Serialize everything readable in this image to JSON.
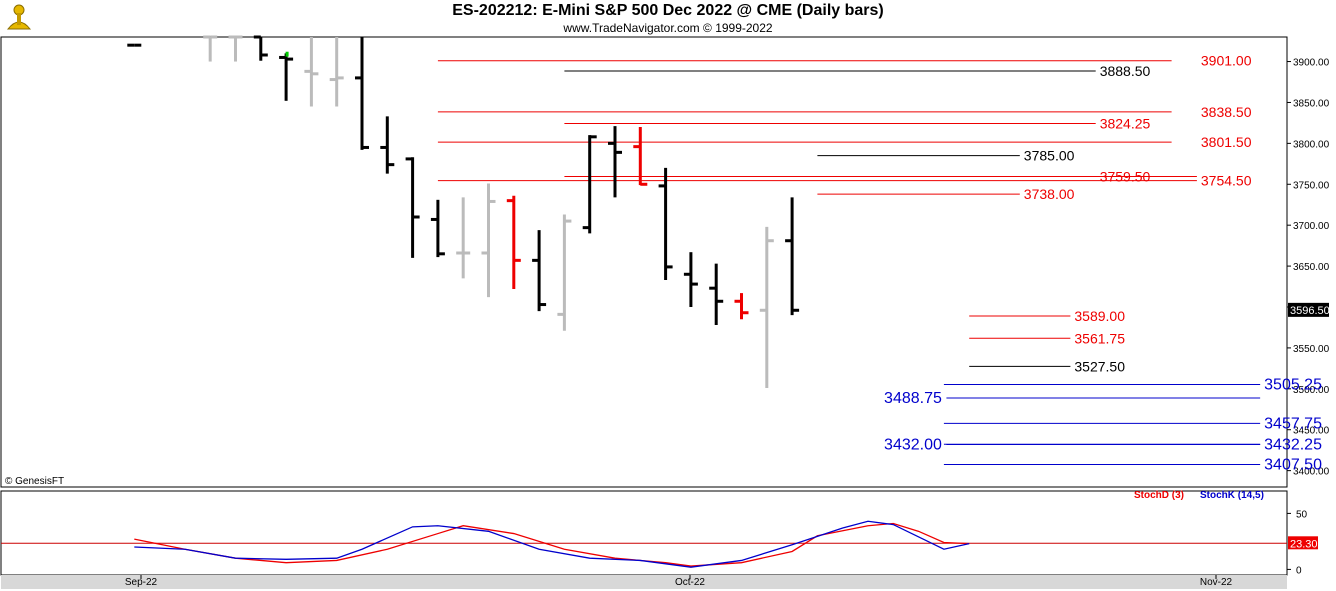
{
  "header": {
    "title": "ES-202212:  E-Mini S&P 500 Dec 2022 @ CME  (Daily bars)",
    "subtitle": "www.TradeNavigator.com © 1999-2022"
  },
  "copyright": "© GenesisFT",
  "colors": {
    "black": "#000000",
    "gray": "#bbbbbb",
    "red": "#ee0000",
    "blue": "#0000cc",
    "green": "#00cc00"
  },
  "chart_data": {
    "type": "ohlc",
    "price_axis": {
      "ylim": [
        3380,
        3930
      ],
      "ticks": [
        "3900.00",
        "3850.00",
        "3800.00",
        "3750.00",
        "3700.00",
        "3650.00",
        "3600.00",
        "3550.00",
        "3500.00",
        "3450.00",
        "3400.00"
      ],
      "last_price": "3596.50"
    },
    "x_labels": [
      "Sep-22",
      "Oct-22",
      "Nov-22"
    ],
    "bars": [
      {
        "i": 1,
        "o": 3920,
        "h": 3920,
        "l": 3920,
        "c": 3920,
        "color": "black"
      },
      {
        "i": 4,
        "o": 3930,
        "h": 3930,
        "l": 3900,
        "c": 3930,
        "color": "gray"
      },
      {
        "i": 5,
        "o": 3930,
        "h": 3930,
        "l": 3900,
        "c": 3930,
        "color": "gray"
      },
      {
        "i": 6,
        "o": 3930,
        "h": 3930,
        "l": 3901,
        "c": 3908,
        "color": "black"
      },
      {
        "i": 7,
        "o": 3905,
        "h": 3910,
        "l": 3852,
        "c": 3903,
        "color": "black"
      },
      {
        "i": 8,
        "o": 3888,
        "h": 3930,
        "l": 3845,
        "c": 3885,
        "color": "gray"
      },
      {
        "i": 9,
        "o": 3878,
        "h": 3930,
        "l": 3845,
        "c": 3880,
        "color": "gray"
      },
      {
        "i": 10,
        "o": 3880,
        "h": 3930,
        "l": 3792,
        "c": 3795,
        "color": "black"
      },
      {
        "i": 11,
        "o": 3795,
        "h": 3833,
        "l": 3763,
        "c": 3774,
        "color": "black"
      },
      {
        "i": 12,
        "o": 3781,
        "h": 3783,
        "l": 3660,
        "c": 3710,
        "color": "black"
      },
      {
        "i": 13,
        "o": 3707,
        "h": 3731,
        "l": 3661,
        "c": 3665,
        "color": "black"
      },
      {
        "i": 14,
        "o": 3666,
        "h": 3734,
        "l": 3635,
        "c": 3666,
        "color": "gray"
      },
      {
        "i": 15,
        "o": 3666,
        "h": 3751,
        "l": 3612,
        "c": 3729,
        "color": "gray"
      },
      {
        "i": 16,
        "o": 3730,
        "h": 3736,
        "l": 3622,
        "c": 3657,
        "color": "red"
      },
      {
        "i": 17,
        "o": 3657,
        "h": 3694,
        "l": 3595,
        "c": 3603,
        "color": "black"
      },
      {
        "i": 18,
        "o": 3591,
        "h": 3713,
        "l": 3571,
        "c": 3705,
        "color": "gray"
      },
      {
        "i": 19,
        "o": 3697,
        "h": 3810,
        "l": 3690,
        "c": 3808,
        "color": "black"
      },
      {
        "i": 20,
        "o": 3800,
        "h": 3821,
        "l": 3734,
        "c": 3789,
        "color": "black"
      },
      {
        "i": 21,
        "o": 3796,
        "h": 3820,
        "l": 3749,
        "c": 3750,
        "color": "red"
      },
      {
        "i": 22,
        "o": 3748,
        "h": 3770,
        "l": 3633,
        "c": 3649,
        "color": "black"
      },
      {
        "i": 23,
        "o": 3640,
        "h": 3667,
        "l": 3600,
        "c": 3628,
        "color": "black"
      },
      {
        "i": 24,
        "o": 3623,
        "h": 3653,
        "l": 3578,
        "c": 3607,
        "color": "black"
      },
      {
        "i": 25,
        "o": 3607,
        "h": 3617,
        "l": 3585,
        "c": 3593,
        "color": "red"
      },
      {
        "i": 26,
        "o": 3596,
        "h": 3698,
        "l": 3501,
        "c": 3681,
        "color": "gray"
      },
      {
        "i": 27,
        "o": 3681,
        "h": 3734,
        "l": 3590,
        "c": 3596,
        "color": "black"
      }
    ],
    "levels": [
      {
        "label": "3901.00",
        "price": 3901.0,
        "color": "red",
        "x1": 13,
        "x2": 42,
        "label_x": 43,
        "label_side": "right"
      },
      {
        "label": "3888.50",
        "price": 3888.5,
        "color": "black",
        "x1": 18,
        "x2": 39,
        "label_x": 39,
        "label_side": "right"
      },
      {
        "label": "3838.50",
        "price": 3838.5,
        "color": "red",
        "x1": 13,
        "x2": 42,
        "label_x": 43,
        "label_side": "right"
      },
      {
        "label": "3824.25",
        "price": 3824.25,
        "color": "red",
        "x1": 18,
        "x2": 39,
        "label_x": 39,
        "label_side": "right"
      },
      {
        "label": "3801.50",
        "price": 3801.5,
        "color": "red",
        "x1": 13,
        "x2": 42,
        "label_x": 43,
        "label_side": "right"
      },
      {
        "label": "3785.00",
        "price": 3785.0,
        "color": "black",
        "x1": 28,
        "x2": 36,
        "label_x": 36,
        "label_side": "right"
      },
      {
        "label": "3759.50",
        "price": 3759.5,
        "color": "red",
        "x1": 18,
        "x2": 43,
        "label_x": 39,
        "label_side": "right"
      },
      {
        "label": "3754.50",
        "price": 3754.5,
        "color": "red",
        "x1": 13,
        "x2": 43,
        "label_x": 43,
        "label_side": "right"
      },
      {
        "label": "3738.00",
        "price": 3738.0,
        "color": "red",
        "x1": 28,
        "x2": 36,
        "label_x": 36,
        "label_side": "right"
      },
      {
        "label": "3589.00",
        "price": 3589.0,
        "color": "red",
        "x1": 34,
        "x2": 38,
        "label_x": 38,
        "label_side": "right"
      },
      {
        "label": "3561.75",
        "price": 3561.75,
        "color": "red",
        "x1": 34,
        "x2": 38,
        "label_x": 38,
        "label_side": "right"
      },
      {
        "label": "3527.50",
        "price": 3527.5,
        "color": "black",
        "x1": 34,
        "x2": 38,
        "label_x": 38,
        "label_side": "right"
      },
      {
        "label": "3505.25",
        "price": 3505.25,
        "color": "blue",
        "x1": 33,
        "x2": 45.5,
        "label_x": 45.5,
        "label_side": "right"
      },
      {
        "label": "3488.75",
        "price": 3488.75,
        "color": "blue",
        "x1": 33.1,
        "x2": 45.5,
        "label_x": 33,
        "label_side": "left"
      },
      {
        "label": "3457.75",
        "price": 3457.75,
        "color": "blue",
        "x1": 33,
        "x2": 45.5,
        "label_x": 45.5,
        "label_side": "right"
      },
      {
        "label": "3432.25",
        "price": 3432.25,
        "color": "blue",
        "x1": 33,
        "x2": 45.5,
        "label_x": 45.5,
        "label_side": "right"
      },
      {
        "label": "3432.00",
        "price": 3432.0,
        "color": "blue",
        "x1": 33.1,
        "x2": 45.5,
        "label_x": 33,
        "label_side": "left"
      },
      {
        "label": "3407.50",
        "price": 3407.5,
        "color": "blue",
        "x1": 33,
        "x2": 45.5,
        "label_x": 45.5,
        "label_side": "right"
      }
    ],
    "indicator": {
      "legend": [
        "StochD (3)",
        "StochK (14,5)"
      ],
      "ylim": [
        -5,
        70
      ],
      "ticks": [
        "50",
        "0"
      ],
      "last_value": "23.30",
      "stoch_d": [
        {
          "i": 1,
          "v": 27
        },
        {
          "i": 3,
          "v": 18
        },
        {
          "i": 5,
          "v": 10
        },
        {
          "i": 7,
          "v": 6
        },
        {
          "i": 9,
          "v": 8
        },
        {
          "i": 11,
          "v": 18
        },
        {
          "i": 13,
          "v": 32
        },
        {
          "i": 14,
          "v": 39
        },
        {
          "i": 16,
          "v": 32
        },
        {
          "i": 18,
          "v": 18
        },
        {
          "i": 20,
          "v": 10
        },
        {
          "i": 22,
          "v": 6
        },
        {
          "i": 23,
          "v": 3
        },
        {
          "i": 25,
          "v": 6
        },
        {
          "i": 27,
          "v": 16
        },
        {
          "i": 28,
          "v": 30
        },
        {
          "i": 30,
          "v": 39
        },
        {
          "i": 31,
          "v": 41
        },
        {
          "i": 32,
          "v": 34
        },
        {
          "i": 33,
          "v": 24
        },
        {
          "i": 34,
          "v": 23
        }
      ],
      "stoch_k": [
        {
          "i": 1,
          "v": 20
        },
        {
          "i": 3,
          "v": 18
        },
        {
          "i": 5,
          "v": 10
        },
        {
          "i": 7,
          "v": 9
        },
        {
          "i": 9,
          "v": 10
        },
        {
          "i": 10,
          "v": 18
        },
        {
          "i": 12,
          "v": 38
        },
        {
          "i": 13,
          "v": 39
        },
        {
          "i": 15,
          "v": 34
        },
        {
          "i": 17,
          "v": 18
        },
        {
          "i": 19,
          "v": 10
        },
        {
          "i": 21,
          "v": 8
        },
        {
          "i": 23,
          "v": 2
        },
        {
          "i": 25,
          "v": 8
        },
        {
          "i": 27,
          "v": 22
        },
        {
          "i": 29,
          "v": 37
        },
        {
          "i": 30,
          "v": 43
        },
        {
          "i": 31,
          "v": 40
        },
        {
          "i": 33,
          "v": 18
        },
        {
          "i": 34,
          "v": 23
        }
      ]
    }
  }
}
